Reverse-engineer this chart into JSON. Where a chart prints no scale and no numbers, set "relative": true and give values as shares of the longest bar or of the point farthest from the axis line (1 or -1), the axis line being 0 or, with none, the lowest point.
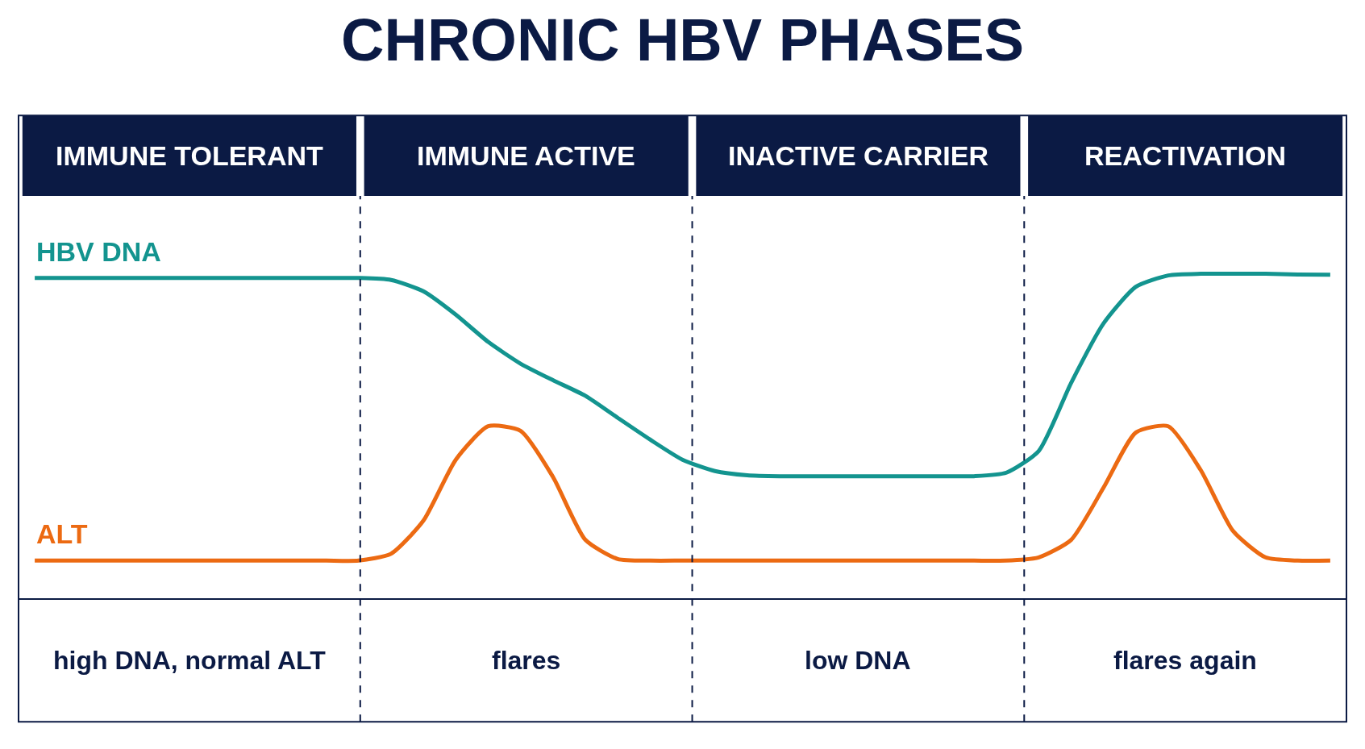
{
  "chart_data": {
    "type": "line",
    "title": "CHRONIC HBV PHASES",
    "relative": true,
    "legend": false,
    "marker": "none",
    "line_style": "solid",
    "categories": [
      null,
      null,
      null,
      null,
      null,
      null,
      null,
      null,
      null,
      null,
      null,
      null,
      null,
      null,
      null,
      null,
      null,
      null,
      null,
      null,
      null,
      null,
      null,
      null,
      null,
      null,
      null,
      null,
      null,
      null,
      null,
      null,
      null,
      null,
      null,
      null,
      null,
      null,
      null,
      null,
      null
    ],
    "series": [
      {
        "name": "HBV DNA",
        "color": "#13948f",
        "values": [
          0.987,
          0.987,
          0.987,
          0.987,
          0.987,
          0.987,
          0.987,
          0.987,
          0.987,
          0.987,
          0.987,
          0.981,
          0.946,
          0.874,
          0.79,
          0.723,
          0.672,
          0.624,
          0.556,
          0.489,
          0.427,
          0.392,
          0.379,
          0.376,
          0.376,
          0.376,
          0.376,
          0.376,
          0.376,
          0.376,
          0.387,
          0.454,
          0.664,
          0.847,
          0.96,
          0.995,
          1.0,
          1.0,
          1.0,
          0.998,
          0.997
        ]
      },
      {
        "name": "ALT",
        "color": "#ec6a12",
        "values": [
          0.116,
          0.116,
          0.116,
          0.116,
          0.116,
          0.116,
          0.116,
          0.116,
          0.116,
          0.116,
          0.116,
          0.137,
          0.239,
          0.427,
          0.53,
          0.516,
          0.374,
          0.18,
          0.121,
          0.116,
          0.116,
          0.116,
          0.116,
          0.116,
          0.116,
          0.116,
          0.116,
          0.116,
          0.116,
          0.116,
          0.116,
          0.126,
          0.18,
          0.341,
          0.511,
          0.53,
          0.395,
          0.207,
          0.126,
          0.116,
          0.116
        ]
      }
    ],
    "annotations": [
      "IMMUNE TOLERANT",
      "IMMUNE ACTIVE",
      "INACTIVE CARRIER",
      "REACTIVATION",
      "high DNA, normal ALT",
      "flares",
      "low DNA",
      "flares again"
    ]
  }
}
